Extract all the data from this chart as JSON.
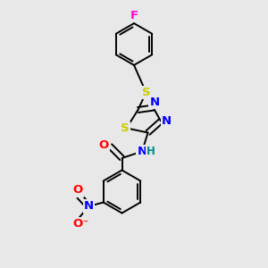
{
  "background_color": "#e8e8e8",
  "colors": {
    "F": "#ff00cc",
    "S": "#cccc00",
    "N": "#0000ff",
    "O": "#ff0000",
    "C": "#000000",
    "H": "#008b8b"
  },
  "font_size": 9.5,
  "fig_size": [
    3.0,
    3.0
  ],
  "dpi": 100
}
